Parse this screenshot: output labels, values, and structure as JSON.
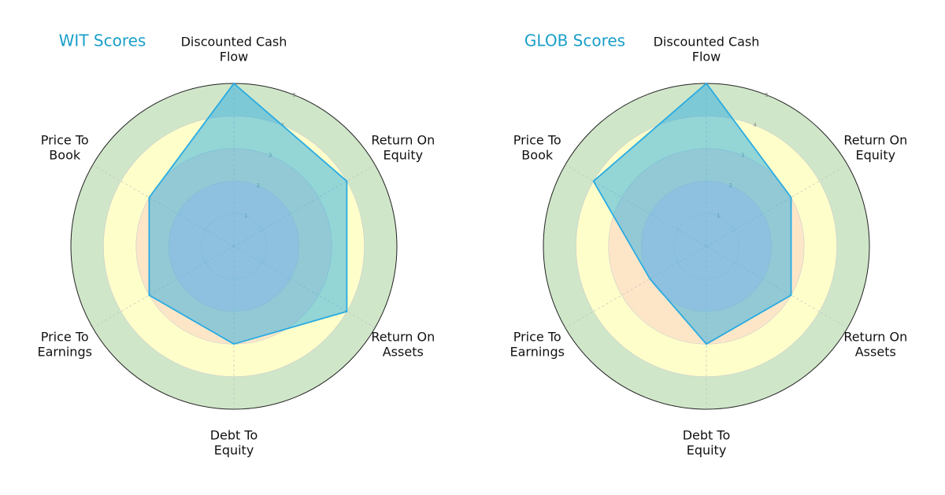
{
  "chart_data": [
    {
      "type": "radar",
      "title": "WIT Scores",
      "title_color": "#1a9fc9",
      "categories": [
        "Discounted Cash\nFlow",
        "Return On\nEquity",
        "Return On\nAssets",
        "Debt To\nEquity",
        "Price To\nEarnings",
        "Price To\nBook"
      ],
      "values": [
        5,
        4,
        4,
        3,
        3,
        3
      ],
      "color": "#29abe2",
      "rlim": [
        0,
        5
      ],
      "rticks": [
        1,
        2,
        3,
        4,
        5
      ],
      "bands": [
        {
          "from": 0,
          "to": 2,
          "color": "#f3d7dc"
        },
        {
          "from": 2,
          "to": 3,
          "color": "#fde6c8"
        },
        {
          "from": 3,
          "to": 4,
          "color": "#fefecb"
        },
        {
          "from": 4,
          "to": 5,
          "color": "#d0e6c9"
        }
      ]
    },
    {
      "type": "radar",
      "title": "GLOB Scores",
      "title_color": "#1a9fc9",
      "categories": [
        "Discounted Cash\nFlow",
        "Return On\nEquity",
        "Return On\nAssets",
        "Debt To\nEquity",
        "Price To\nEarnings",
        "Price To\nBook"
      ],
      "values": [
        5,
        3,
        3,
        3,
        2,
        4
      ],
      "color": "#29abe2",
      "rlim": [
        0,
        5
      ],
      "rticks": [
        1,
        2,
        3,
        4,
        5
      ],
      "bands": [
        {
          "from": 0,
          "to": 2,
          "color": "#f3d7dc"
        },
        {
          "from": 2,
          "to": 3,
          "color": "#fde6c8"
        },
        {
          "from": 3,
          "to": 4,
          "color": "#fefecb"
        },
        {
          "from": 4,
          "to": 5,
          "color": "#d0e6c9"
        }
      ]
    }
  ]
}
